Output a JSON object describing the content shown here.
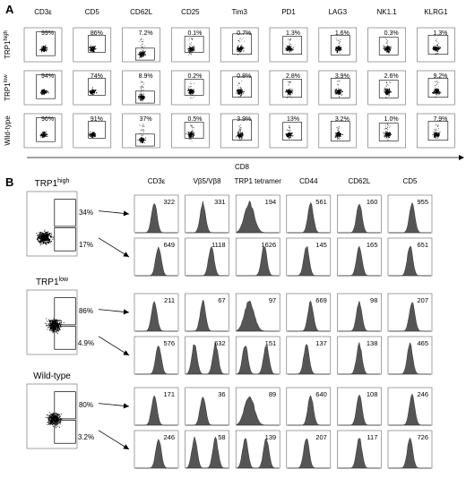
{
  "panelA": {
    "label": "A",
    "columns": [
      "CD3ε",
      "CD5",
      "CD62L",
      "CD25",
      "Tim3",
      "PD1",
      "LAG3",
      "NK1.1",
      "KLRG1"
    ],
    "rows": [
      {
        "base": "TRP1",
        "sup": "high",
        "values": [
          "99%",
          "86%",
          "7.2%",
          "0.1%",
          "0.7%",
          "1.3%",
          "1.6%",
          "0.3%",
          "1.3%"
        ]
      },
      {
        "base": "TRP1",
        "sup": "low",
        "values": [
          "94%",
          "74%",
          "8.9%",
          "0.2%",
          "0.8%",
          "2.8%",
          "3.9%",
          "2.6%",
          "9.2%"
        ]
      },
      {
        "base": "Wild-type",
        "sup": "",
        "values": [
          "96%",
          "91%",
          "37%",
          "0.5%",
          "3.9%",
          "13%",
          "3.2%",
          "1.0%",
          "7.9%"
        ]
      }
    ],
    "x_axis_label": "CD8"
  },
  "panelB": {
    "label": "B",
    "columns": [
      "CD3ε",
      "Vβ5/Vβ8",
      "TRP1 tetramer",
      "CD44",
      "CD62L",
      "CD5"
    ],
    "groups": [
      {
        "base": "TRP1",
        "sup": "high",
        "gate_upper": "34%",
        "gate_lower": "17%",
        "upper_values": [
          "322",
          "331",
          "194",
          "561",
          "160",
          "955"
        ],
        "lower_values": [
          "649",
          "1118",
          "1626",
          "145",
          "165",
          "651"
        ]
      },
      {
        "base": "TRP1",
        "sup": "low",
        "gate_upper": "86%",
        "gate_lower": "4.9%",
        "upper_values": [
          "211",
          "67",
          "97",
          "669",
          "98",
          "207"
        ],
        "lower_values": [
          "576",
          "632",
          "151",
          "137",
          "138",
          "465"
        ]
      },
      {
        "base": "Wild-type",
        "sup": "",
        "gate_upper": "80%",
        "gate_lower": "3.2%",
        "upper_values": [
          "171",
          "36",
          "89",
          "640",
          "108",
          "246"
        ],
        "lower_values": [
          "246",
          "58",
          "139",
          "207",
          "117",
          "726"
        ]
      }
    ]
  },
  "colors": {
    "background": "#ffffff",
    "ink": "#000000",
    "histogram_fill": "#555555"
  }
}
